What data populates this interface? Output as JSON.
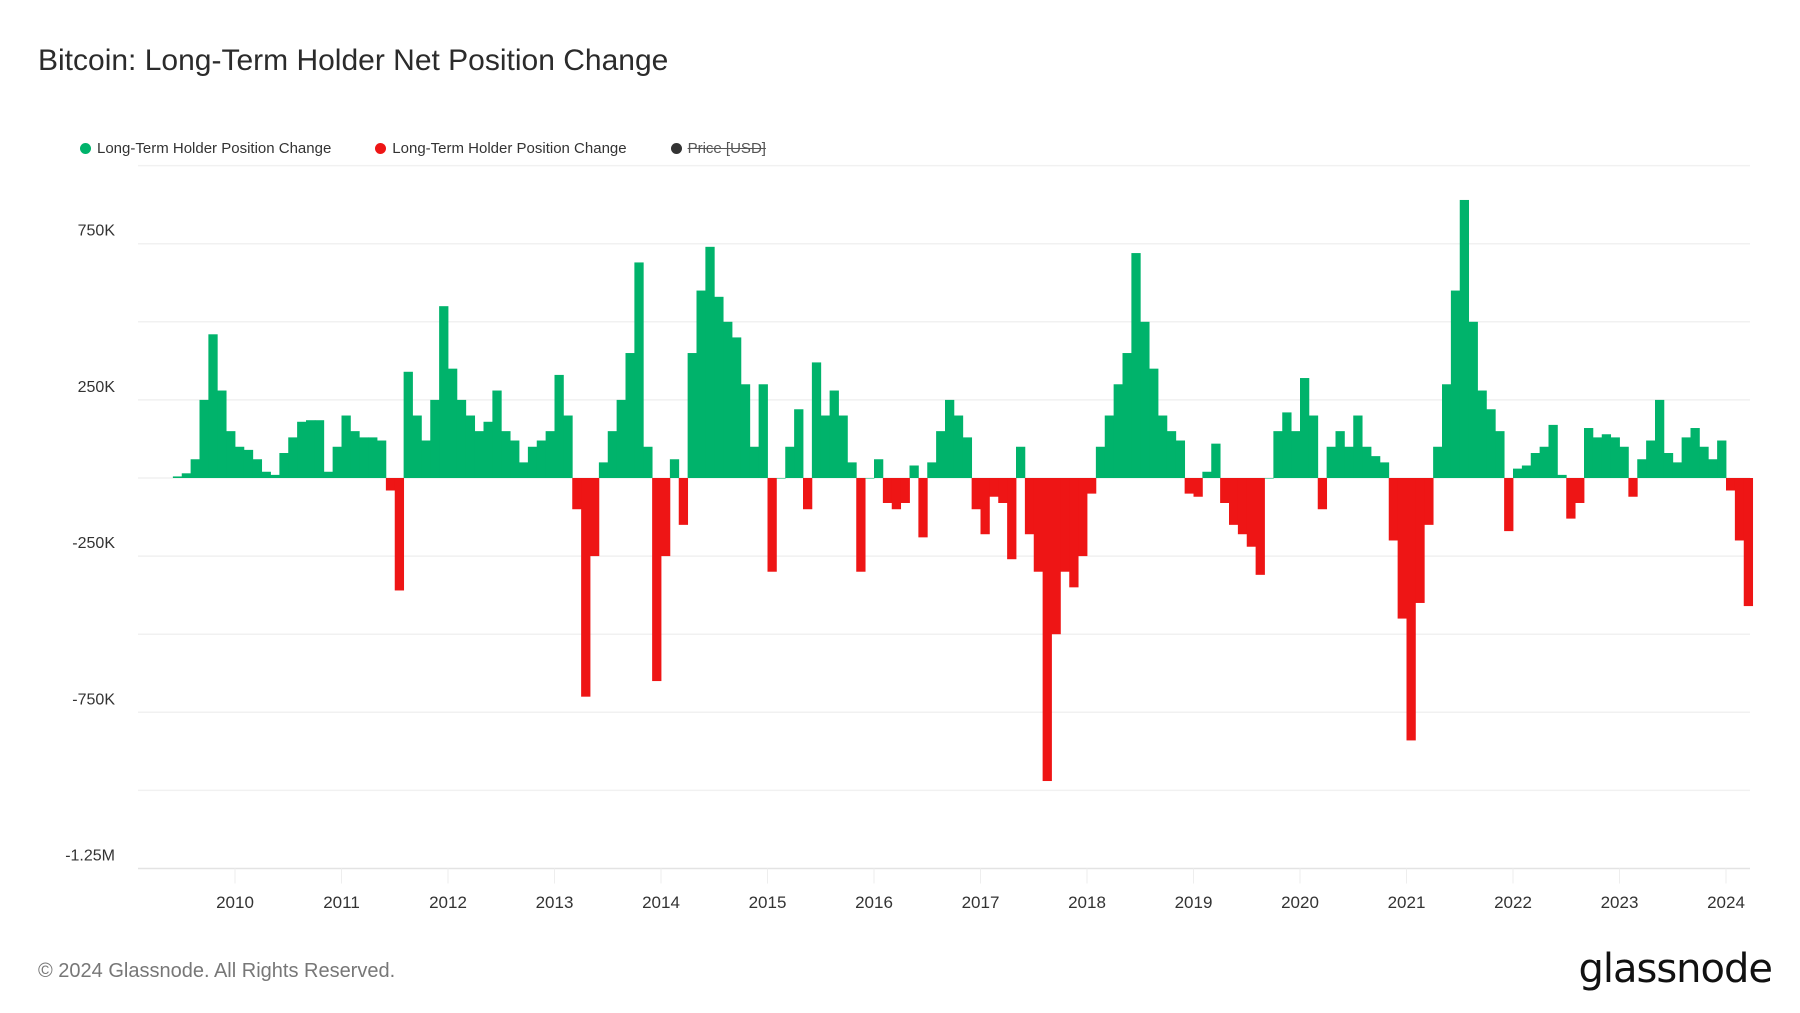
{
  "chart_data": {
    "type": "bar",
    "title": "Bitcoin: Long-Term Holder Net Position Change",
    "legend": [
      {
        "name": "Long-Term Holder Position Change",
        "color": "#00b36b",
        "sign": "positive"
      },
      {
        "name": "Long-Term Holder Position Change",
        "color": "#ee1515",
        "sign": "negative"
      },
      {
        "name": "Price [USD]",
        "color": "#333333",
        "hidden": true
      }
    ],
    "legend_position": "top-left",
    "grid": true,
    "ylim": [
      -1250000,
      1000000
    ],
    "y_gridlines": [
      1000000,
      750000,
      500000,
      250000,
      0,
      -250000,
      -500000,
      -750000,
      -1000000,
      -1250000
    ],
    "y_tick_values": [
      750000,
      250000,
      -250000,
      -750000,
      -1250000
    ],
    "y_tick_labels": [
      "750K",
      "250K",
      "-250K",
      "-750K",
      "-1.25M"
    ],
    "x_tick_labels": [
      "2010",
      "2011",
      "2012",
      "2013",
      "2014",
      "2015",
      "2016",
      "2017",
      "2018",
      "2019",
      "2020",
      "2021",
      "2022",
      "2023",
      "2024"
    ],
    "xlim": [
      "2009-01",
      "2024-03"
    ],
    "points": [
      [
        "2009-06",
        5000
      ],
      [
        "2009-07",
        15000
      ],
      [
        "2009-08",
        60000
      ],
      [
        "2009-09",
        250000
      ],
      [
        "2009-10",
        460000
      ],
      [
        "2009-11",
        280000
      ],
      [
        "2009-12",
        150000
      ],
      [
        "2010-01",
        100000
      ],
      [
        "2010-02",
        90000
      ],
      [
        "2010-03",
        60000
      ],
      [
        "2010-04",
        20000
      ],
      [
        "2010-05",
        10000
      ],
      [
        "2010-06",
        80000
      ],
      [
        "2010-07",
        130000
      ],
      [
        "2010-08",
        180000
      ],
      [
        "2010-09",
        185000
      ],
      [
        "2010-10",
        185000
      ],
      [
        "2010-11",
        20000
      ],
      [
        "2010-12",
        100000
      ],
      [
        "2011-01",
        200000
      ],
      [
        "2011-02",
        150000
      ],
      [
        "2011-03",
        130000
      ],
      [
        "2011-04",
        130000
      ],
      [
        "2011-05",
        120000
      ],
      [
        "2011-06",
        -40000
      ],
      [
        "2011-07",
        -360000
      ],
      [
        "2011-08",
        340000
      ],
      [
        "2011-09",
        200000
      ],
      [
        "2011-10",
        120000
      ],
      [
        "2011-11",
        250000
      ],
      [
        "2011-12",
        550000
      ],
      [
        "2012-01",
        350000
      ],
      [
        "2012-02",
        250000
      ],
      [
        "2012-03",
        200000
      ],
      [
        "2012-04",
        150000
      ],
      [
        "2012-05",
        180000
      ],
      [
        "2012-06",
        280000
      ],
      [
        "2012-07",
        150000
      ],
      [
        "2012-08",
        120000
      ],
      [
        "2012-09",
        50000
      ],
      [
        "2012-10",
        100000
      ],
      [
        "2012-11",
        120000
      ],
      [
        "2012-12",
        150000
      ],
      [
        "2013-01",
        330000
      ],
      [
        "2013-02",
        200000
      ],
      [
        "2013-03",
        -100000
      ],
      [
        "2013-04",
        -700000
      ],
      [
        "2013-05",
        -250000
      ],
      [
        "2013-06",
        50000
      ],
      [
        "2013-07",
        150000
      ],
      [
        "2013-08",
        250000
      ],
      [
        "2013-09",
        400000
      ],
      [
        "2013-10",
        690000
      ],
      [
        "2013-11",
        100000
      ],
      [
        "2013-12",
        -650000
      ],
      [
        "2014-01",
        -250000
      ],
      [
        "2014-02",
        60000
      ],
      [
        "2014-03",
        -150000
      ],
      [
        "2014-04",
        400000
      ],
      [
        "2014-05",
        600000
      ],
      [
        "2014-06",
        740000
      ],
      [
        "2014-07",
        580000
      ],
      [
        "2014-08",
        500000
      ],
      [
        "2014-09",
        450000
      ],
      [
        "2014-10",
        300000
      ],
      [
        "2014-11",
        100000
      ],
      [
        "2014-12",
        300000
      ],
      [
        "2015-01",
        -300000
      ],
      [
        "2015-02",
        0
      ],
      [
        "2015-03",
        100000
      ],
      [
        "2015-04",
        220000
      ],
      [
        "2015-05",
        -100000
      ],
      [
        "2015-06",
        370000
      ],
      [
        "2015-07",
        200000
      ],
      [
        "2015-08",
        280000
      ],
      [
        "2015-09",
        200000
      ],
      [
        "2015-10",
        50000
      ],
      [
        "2015-11",
        -300000
      ],
      [
        "2015-12",
        0
      ],
      [
        "2016-01",
        60000
      ],
      [
        "2016-02",
        -80000
      ],
      [
        "2016-03",
        -100000
      ],
      [
        "2016-04",
        -80000
      ],
      [
        "2016-05",
        40000
      ],
      [
        "2016-06",
        -190000
      ],
      [
        "2016-07",
        50000
      ],
      [
        "2016-08",
        150000
      ],
      [
        "2016-09",
        250000
      ],
      [
        "2016-10",
        200000
      ],
      [
        "2016-11",
        130000
      ],
      [
        "2016-12",
        -100000
      ],
      [
        "2017-01",
        -180000
      ],
      [
        "2017-02",
        -60000
      ],
      [
        "2017-03",
        -80000
      ],
      [
        "2017-04",
        -260000
      ],
      [
        "2017-05",
        100000
      ],
      [
        "2017-06",
        -180000
      ],
      [
        "2017-07",
        -300000
      ],
      [
        "2017-08",
        -970000
      ],
      [
        "2017-09",
        -500000
      ],
      [
        "2017-10",
        -300000
      ],
      [
        "2017-11",
        -350000
      ],
      [
        "2017-12",
        -250000
      ],
      [
        "2018-01",
        -50000
      ],
      [
        "2018-02",
        100000
      ],
      [
        "2018-03",
        200000
      ],
      [
        "2018-04",
        300000
      ],
      [
        "2018-05",
        400000
      ],
      [
        "2018-06",
        720000
      ],
      [
        "2018-07",
        500000
      ],
      [
        "2018-08",
        350000
      ],
      [
        "2018-09",
        200000
      ],
      [
        "2018-10",
        150000
      ],
      [
        "2018-11",
        120000
      ],
      [
        "2018-12",
        -50000
      ],
      [
        "2019-01",
        -60000
      ],
      [
        "2019-02",
        20000
      ],
      [
        "2019-03",
        110000
      ],
      [
        "2019-04",
        -80000
      ],
      [
        "2019-05",
        -150000
      ],
      [
        "2019-06",
        -180000
      ],
      [
        "2019-07",
        -220000
      ],
      [
        "2019-08",
        -310000
      ],
      [
        "2019-09",
        0
      ],
      [
        "2019-10",
        150000
      ],
      [
        "2019-11",
        210000
      ],
      [
        "2019-12",
        150000
      ],
      [
        "2020-01",
        320000
      ],
      [
        "2020-02",
        200000
      ],
      [
        "2020-03",
        -100000
      ],
      [
        "2020-04",
        100000
      ],
      [
        "2020-05",
        150000
      ],
      [
        "2020-06",
        100000
      ],
      [
        "2020-07",
        200000
      ],
      [
        "2020-08",
        100000
      ],
      [
        "2020-09",
        70000
      ],
      [
        "2020-10",
        50000
      ],
      [
        "2020-11",
        -200000
      ],
      [
        "2020-12",
        -450000
      ],
      [
        "2021-01",
        -840000
      ],
      [
        "2021-02",
        -400000
      ],
      [
        "2021-03",
        -150000
      ],
      [
        "2021-04",
        100000
      ],
      [
        "2021-05",
        300000
      ],
      [
        "2021-06",
        600000
      ],
      [
        "2021-07",
        890000
      ],
      [
        "2021-08",
        500000
      ],
      [
        "2021-09",
        280000
      ],
      [
        "2021-10",
        220000
      ],
      [
        "2021-11",
        150000
      ],
      [
        "2021-12",
        -170000
      ],
      [
        "2022-01",
        30000
      ],
      [
        "2022-02",
        40000
      ],
      [
        "2022-03",
        80000
      ],
      [
        "2022-04",
        100000
      ],
      [
        "2022-05",
        170000
      ],
      [
        "2022-06",
        10000
      ],
      [
        "2022-07",
        -130000
      ],
      [
        "2022-08",
        -80000
      ],
      [
        "2022-09",
        160000
      ],
      [
        "2022-10",
        130000
      ],
      [
        "2022-11",
        140000
      ],
      [
        "2022-12",
        130000
      ],
      [
        "2023-01",
        100000
      ],
      [
        "2023-02",
        -60000
      ],
      [
        "2023-03",
        60000
      ],
      [
        "2023-04",
        120000
      ],
      [
        "2023-05",
        250000
      ],
      [
        "2023-06",
        80000
      ],
      [
        "2023-07",
        50000
      ],
      [
        "2023-08",
        130000
      ],
      [
        "2023-09",
        160000
      ],
      [
        "2023-10",
        100000
      ],
      [
        "2023-11",
        60000
      ],
      [
        "2023-12",
        120000
      ],
      [
        "2024-01",
        -40000
      ],
      [
        "2024-02",
        -200000
      ],
      [
        "2024-03",
        -410000
      ]
    ]
  },
  "footer": {
    "copyright": "© 2024 Glassnode. All Rights Reserved.",
    "logo": "glassnode"
  }
}
